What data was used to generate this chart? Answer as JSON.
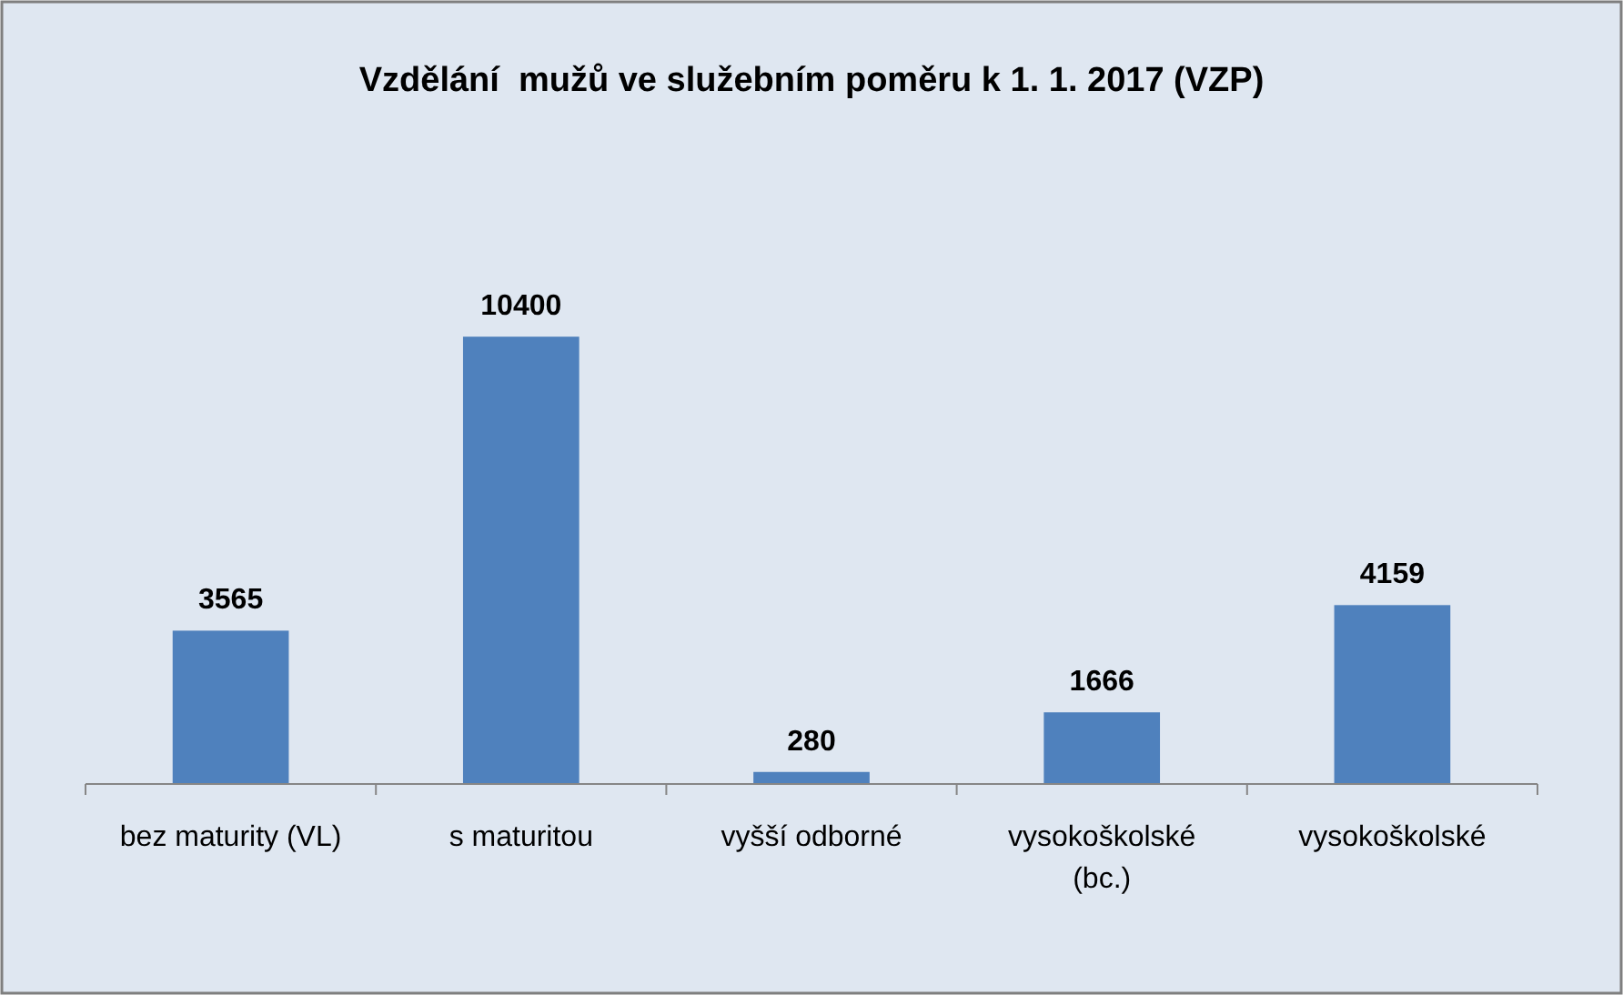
{
  "chart_data": {
    "type": "bar",
    "title": "Vzdělání  mužů ve služebním poměru k 1. 1. 2017 (VZP)",
    "categories": [
      "bez maturity (VL)",
      "s maturitou",
      "vyšší odborné",
      "vysokoškolské (bc.)",
      "vysokoškolské"
    ],
    "values": [
      3565,
      10400,
      280,
      1666,
      4159
    ],
    "color": "#4f81bd",
    "data_labels": true
  }
}
